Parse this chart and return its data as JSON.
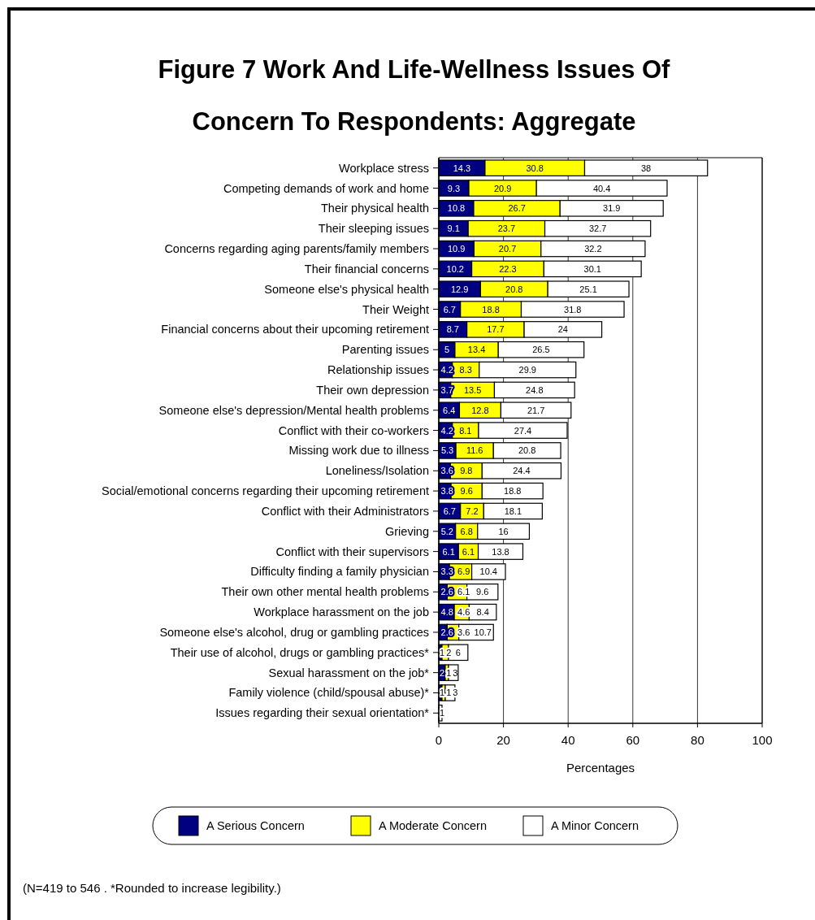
{
  "chart_data": {
    "type": "bar",
    "orientation": "horizontal",
    "stacked": true,
    "title": "Figure 7  Work And Life-Wellness Issues Of Concern To Respondents: Aggregate",
    "xlabel": "Percentages",
    "categories": [
      "Workplace stress",
      "Competing demands of work and home",
      "Their physical health",
      "Their sleeping issues",
      "Concerns regarding aging parents/family members",
      "Their financial concerns",
      "Someone else's physical health",
      "Their Weight",
      "Financial concerns about their upcoming retirement",
      "Parenting issues",
      "Relationship issues",
      "Their own depression",
      "Someone else's depression/Mental health problems",
      "Conflict with their co-workers",
      "Missing work due to illness",
      "Loneliness/Isolation",
      "Social/emotional concerns regarding their upcoming retirement",
      "Conflict with their Administrators",
      "Grieving",
      "Conflict with their supervisors",
      "Difficulty finding a family physician",
      "Their own other mental health problems",
      "Workplace harassment on the job",
      "Someone else's alcohol, drug or gambling practices",
      "Their use of alcohol, drugs or gambling practices*",
      "Sexual harassment on the job*",
      "Family violence (child/spousal abuse)*",
      "Issues regarding their sexual orientation*"
    ],
    "series": [
      {
        "name": "A Serious Concern",
        "color": "#000080",
        "values": [
          14.3,
          9.3,
          10.8,
          9.1,
          10.9,
          10.2,
          12.9,
          6.7,
          8.7,
          5,
          4.2,
          3.7,
          6.4,
          4.2,
          5.3,
          3.6,
          3.8,
          6.7,
          5.2,
          6.1,
          3.3,
          2.6,
          4.8,
          2.6,
          1,
          2,
          1,
          0
        ],
        "value_labels": [
          "14.3",
          "9.3",
          "10.8",
          "9.1",
          "10.9",
          "10.2",
          "12.9",
          "6.7",
          "8.7",
          "5",
          "4.2",
          "3.7",
          "6.4",
          "4.2",
          "5.3",
          "3.6",
          "3.8",
          "6.7",
          "5.2",
          "6.1",
          "3.3",
          "2.6",
          "4.8",
          "2.6",
          "1",
          "2",
          "1",
          null
        ]
      },
      {
        "name": "A Moderate Concern",
        "color": "#ffff00",
        "values": [
          30.8,
          20.9,
          26.7,
          23.7,
          20.7,
          22.3,
          20.8,
          18.8,
          17.7,
          13.4,
          8.3,
          13.5,
          12.8,
          8.1,
          11.6,
          9.8,
          9.6,
          7.2,
          6.8,
          6.1,
          6.9,
          6.1,
          4.6,
          3.6,
          2,
          1,
          1,
          0
        ],
        "value_labels": [
          "30.8",
          "20.9",
          "26.7",
          "23.7",
          "20.7",
          "22.3",
          "20.8",
          "18.8",
          "17.7",
          "13.4",
          "8.3",
          "13.5",
          "12.8",
          "8.1",
          "11.6",
          "9.8",
          "9.6",
          "7.2",
          "6.8",
          "6.1",
          "6.9",
          "6.1",
          "4.6",
          "3.6",
          "2",
          "1",
          "1",
          null
        ]
      },
      {
        "name": "A Minor  Concern",
        "color": "#ffffff",
        "values": [
          38,
          40.4,
          31.9,
          32.7,
          32.2,
          30.1,
          25.1,
          31.8,
          24,
          26.5,
          29.9,
          24.8,
          21.7,
          27.4,
          20.8,
          24.4,
          18.8,
          18.1,
          16,
          13.8,
          10.4,
          9.6,
          8.4,
          10.7,
          6,
          3,
          3,
          1
        ],
        "value_labels": [
          "38",
          "40.4",
          "31.9",
          "32.7",
          "32.2",
          "30.1",
          "25.1",
          "31.8",
          "24",
          "26.5",
          "29.9",
          "24.8",
          "21.7",
          "27.4",
          "20.8",
          "24.4",
          "18.8",
          "18.1",
          "16",
          "13.8",
          "10.4",
          "9.6",
          "8.4",
          "10.7",
          "6",
          "3",
          "3",
          "1"
        ]
      }
    ],
    "xlim": [
      0,
      100
    ],
    "xticks": [
      0,
      20,
      40,
      60,
      80,
      100
    ],
    "grid": "x",
    "legend": "bottom",
    "annotations": [
      "(N=419 to 546 . *Rounded to increase legibility.)"
    ]
  }
}
